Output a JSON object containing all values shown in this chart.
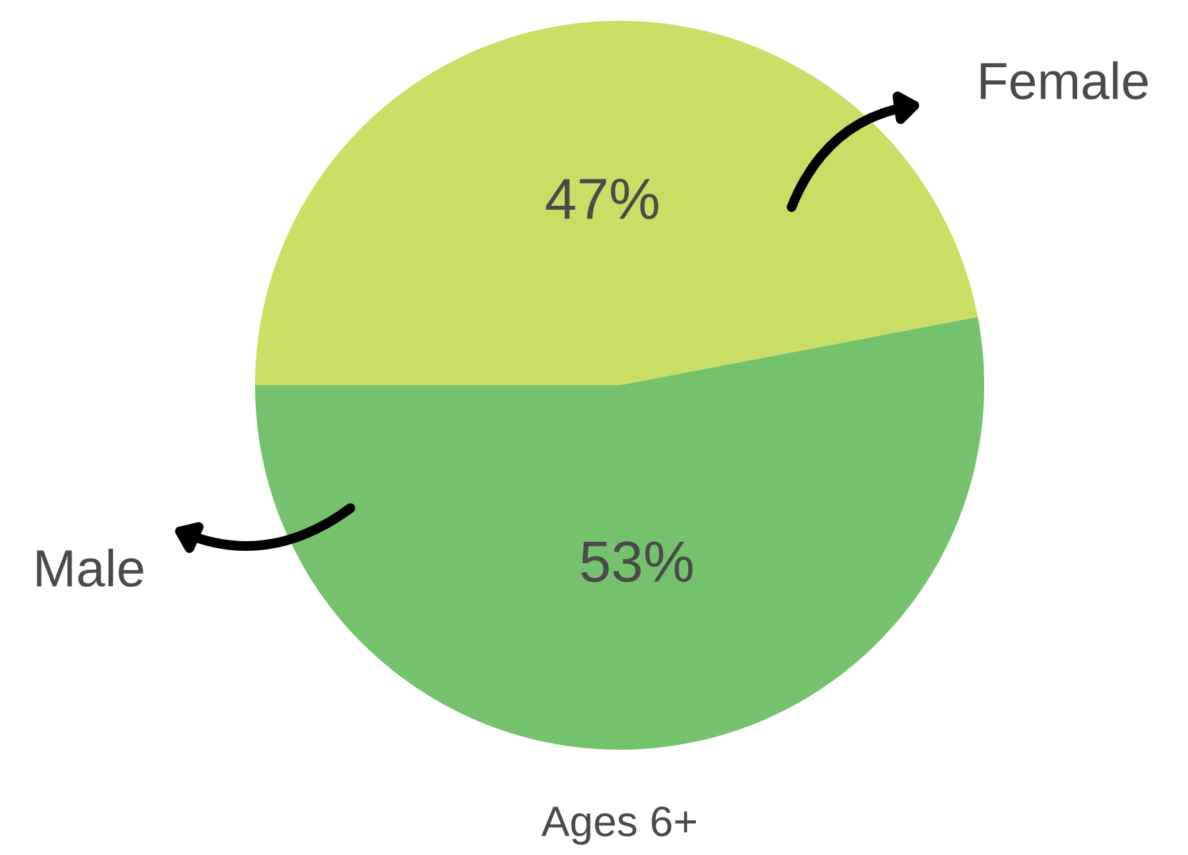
{
  "chart_data": {
    "type": "pie",
    "categories": [
      "Female",
      "Male"
    ],
    "values": [
      47,
      53
    ],
    "colors": [
      "#c8de64",
      "#74c36c"
    ],
    "value_labels": [
      "47%",
      "53%"
    ],
    "annotations": [
      "Ages 6+"
    ]
  }
}
